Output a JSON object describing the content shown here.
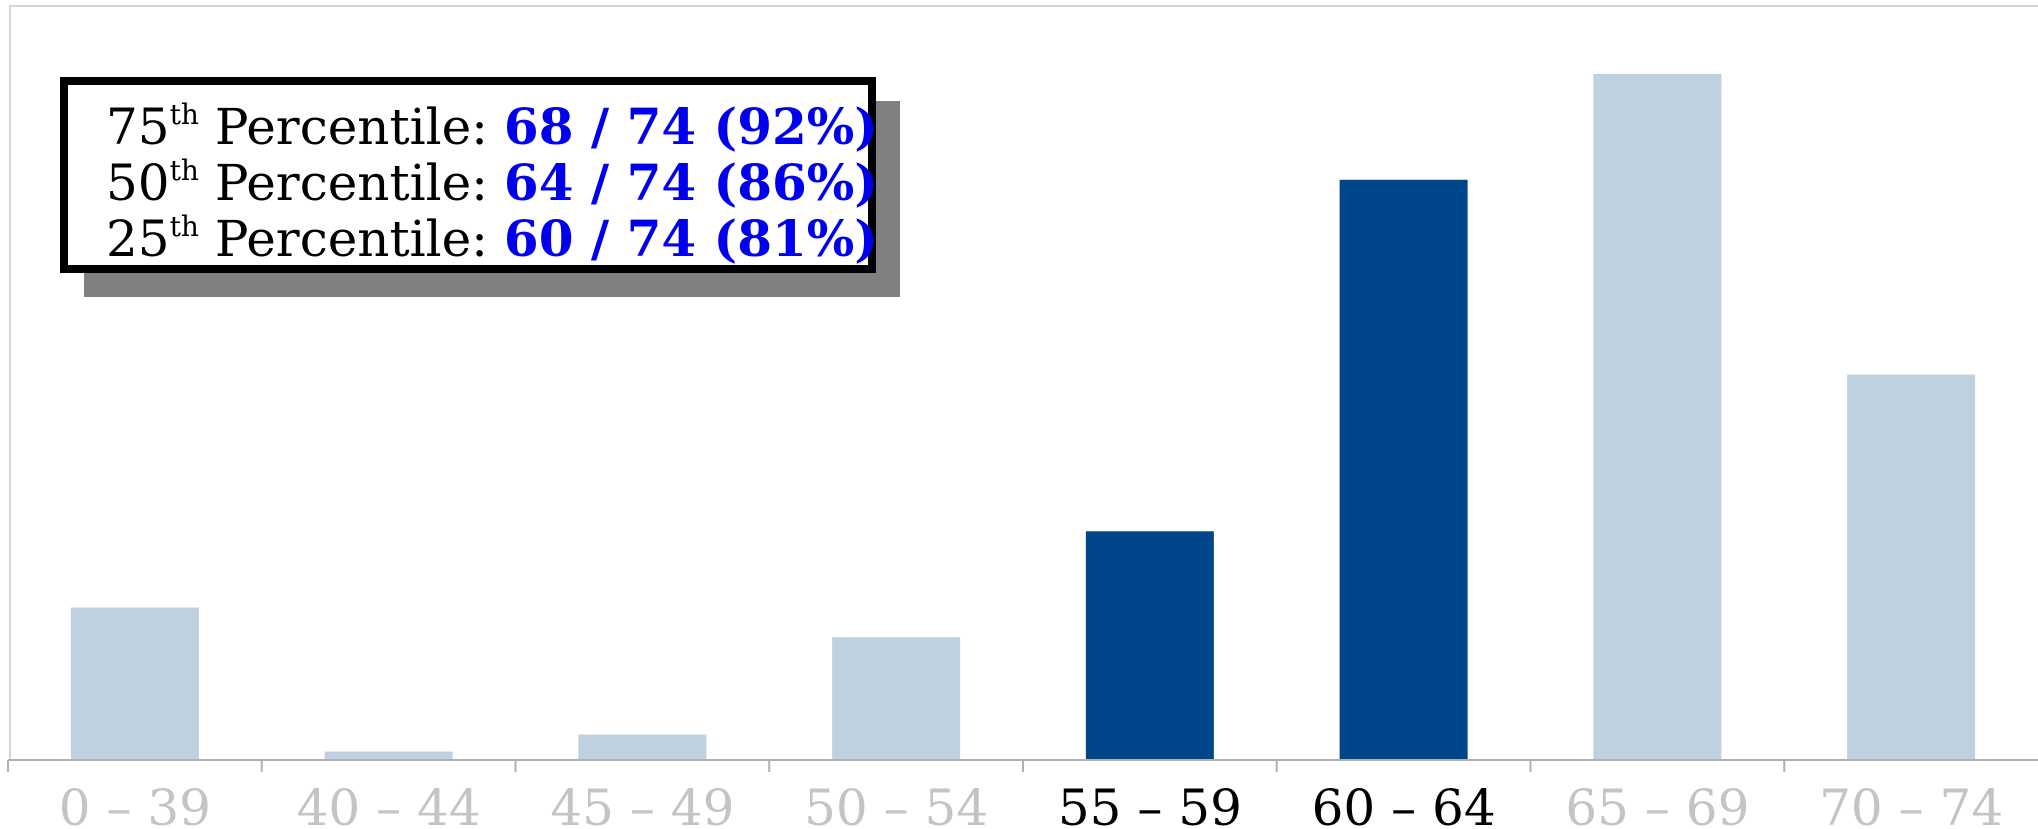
{
  "chart_data": {
    "type": "bar",
    "categories": [
      "0 – 39",
      "40 – 44",
      "45 – 49",
      "50 – 54",
      "55 – 59",
      "60 – 64",
      "65 – 69",
      "70 – 74"
    ],
    "values": [
      18,
      1,
      3,
      14.5,
      27,
      68.5,
      81,
      45.5
    ],
    "highlighted": [
      false,
      false,
      false,
      false,
      true,
      true,
      false,
      false
    ],
    "ylim": [
      0,
      85
    ],
    "colors": {
      "bar": "#bfd0e0",
      "highlight": "#00468a",
      "tick": "#c4c4c4",
      "tick_highlight": "#000000",
      "axis": "#b0b0b0"
    },
    "annotation": {
      "rows": [
        {
          "rank": "75",
          "suffix": "th",
          "text": " Percentile: ",
          "value": "68 / 74 (92%)"
        },
        {
          "rank": "50",
          "suffix": "th",
          "text": " Percentile: ",
          "value": "64 / 74 (86%)"
        },
        {
          "rank": "25",
          "suffix": "th",
          "text": " Percentile: ",
          "value": "60 / 74 (81%)"
        }
      ],
      "value_color": "#0000ee"
    }
  }
}
